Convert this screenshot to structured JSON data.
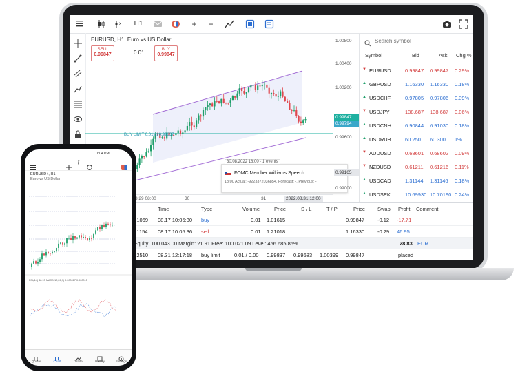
{
  "toolbar": {
    "timeframe": "H1",
    "zoom_in": "+",
    "zoom_out": "−"
  },
  "chart": {
    "title": "EURUSD, H1: Euro vs US Dollar",
    "sell": {
      "label": "SELL",
      "price": "0.99847"
    },
    "buy": {
      "label": "BUY",
      "price": "0.99847"
    },
    "lot": "0.01",
    "limit_label": "BUY LIMIT 0.01 at 0.99837",
    "price_ticks": [
      "1.00800",
      "1.00400",
      "1.00200",
      "0.99847",
      "0.99794",
      "0.99600",
      "0.99165",
      "0.99000"
    ],
    "current_price": "0.99847",
    "secondary_price": "0.99794",
    "bottom_price": "0.99165",
    "time_ticks": [
      "8.29 08:00",
      "30",
      "31",
      "2022.08.31 12:00"
    ],
    "news": {
      "date": "30.08.2022 18:00 · 1 events",
      "title": "FOMC Member Williams Speech",
      "details": "18:00 Actual: -9223372036854, Forecast: -, Previous: -"
    },
    "event_badges": [
      "4",
      "6",
      "6",
      "4"
    ]
  },
  "watchlist": {
    "search_placeholder": "Search symbol",
    "headers": [
      "Symbol",
      "Bid",
      "Ask",
      "Chg %"
    ],
    "rows": [
      {
        "symbol": "EURUSD",
        "bid": "0.99847",
        "ask": "0.99847",
        "chg": "0.29%",
        "dir": "down"
      },
      {
        "symbol": "GBPUSD",
        "bid": "1.16330",
        "ask": "1.16330",
        "chg": "0.18%",
        "dir": "up"
      },
      {
        "symbol": "USDCHF",
        "bid": "0.97805",
        "ask": "0.97806",
        "chg": "0.39%",
        "dir": "up"
      },
      {
        "symbol": "USDJPY",
        "bid": "138.687",
        "ask": "138.687",
        "chg": "0.06%",
        "dir": "down"
      },
      {
        "symbol": "USDCNH",
        "bid": "6.90844",
        "ask": "6.91030",
        "chg": "0.18%",
        "dir": "up"
      },
      {
        "symbol": "USDRUB",
        "bid": "60.250",
        "ask": "60.300",
        "chg": "1%",
        "dir": "up"
      },
      {
        "symbol": "AUDUSD",
        "bid": "0.68601",
        "ask": "0.68602",
        "chg": "0.09%",
        "dir": "down"
      },
      {
        "symbol": "NZDUSD",
        "bid": "0.61211",
        "ask": "0.61216",
        "chg": "0.11%",
        "dir": "down"
      },
      {
        "symbol": "USDCAD",
        "bid": "1.31144",
        "ask": "1.31146",
        "chg": "0.18%",
        "dir": "up"
      },
      {
        "symbol": "USDSEK",
        "bid": "10.69930",
        "ask": "10.70190",
        "chg": "0.24%",
        "dir": "up"
      }
    ]
  },
  "terminal": {
    "headers": [
      "t",
      "Time",
      "Type",
      "Volume",
      "Price",
      "S / L",
      "T / P",
      "Price",
      "Swap",
      "Profit",
      "Comment"
    ],
    "rows": [
      {
        "ticket": "761069",
        "time": "08.17 10:05:30",
        "type": "buy",
        "volume": "0.01",
        "price": "1.01615",
        "sl": "",
        "tp": "",
        "cur": "0.99847",
        "swap": "-0.12",
        "profit": "-17.71"
      },
      {
        "ticket": "761154",
        "time": "08.17 10:05:36",
        "type": "sell",
        "volume": "0.01",
        "price": "1.21018",
        "sl": "",
        "tp": "",
        "cur": "1.16330",
        "swap": "-0.29",
        "profit": "46.95"
      }
    ],
    "summary": {
      "text": ".17  Equity: 100 043.00  Margin: 21.91  Free: 100 021.09  Level: 456 685.85%",
      "total": "28.83",
      "currency": "EUR"
    },
    "order": {
      "ticket": "752510",
      "time": "08.31 12:17:18",
      "type": "buy limit",
      "volume": "0.01 / 0.00",
      "price": "0.99837",
      "sl": "0.99683",
      "tp": "1.00399",
      "cur": "0.99847",
      "state": "placed"
    }
  },
  "phone": {
    "time": "1:04 PM",
    "symbol": "EURUSD+, H1",
    "desc": "Euro vs US Dollar",
    "indicator": "RSI(14) 38.13 MACD(12,26,9) 0.000017 0.000015",
    "nav": [
      "Quotes",
      "Chart",
      "Trade",
      "History",
      "Settings"
    ]
  }
}
